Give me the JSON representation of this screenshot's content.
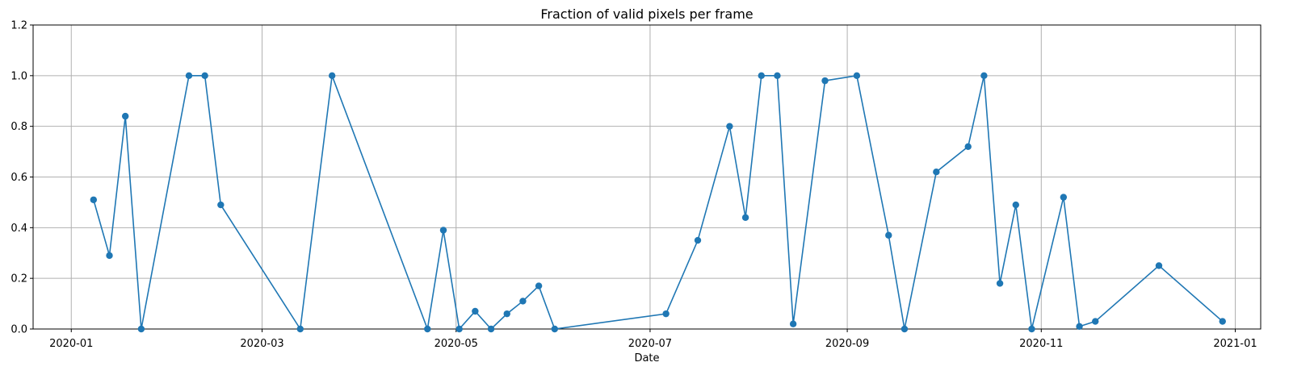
{
  "chart_data": {
    "type": "line",
    "title": "Fraction of valid pixels per frame",
    "xlabel": "Date",
    "ylabel": "",
    "x_scale": "date",
    "xlim": [
      "2019-12-20",
      "2021-01-09"
    ],
    "ylim": [
      0,
      1.2
    ],
    "grid": true,
    "marker": "circle",
    "line_color": "#1f77b4",
    "x_ticks": [
      "2020-01-01",
      "2020-03-01",
      "2020-05-01",
      "2020-07-01",
      "2020-09-01",
      "2020-11-01",
      "2021-01-01"
    ],
    "x_tick_labels": [
      "2020-01",
      "2020-03",
      "2020-05",
      "2020-07",
      "2020-09",
      "2020-11",
      "2021-01"
    ],
    "y_ticks": [
      0,
      0.2,
      0.4,
      0.6,
      0.8,
      1.0,
      1.2
    ],
    "y_tick_labels": [
      "0.0",
      "0.2",
      "0.4",
      "0.6",
      "0.8",
      "1.0",
      "1.2"
    ],
    "series": [
      {
        "points": [
          {
            "x": "2020-01-08",
            "y": 0.51
          },
          {
            "x": "2020-01-13",
            "y": 0.29
          },
          {
            "x": "2020-01-18",
            "y": 0.84
          },
          {
            "x": "2020-01-23",
            "y": 0.0
          },
          {
            "x": "2020-02-07",
            "y": 1.0
          },
          {
            "x": "2020-02-12",
            "y": 1.0
          },
          {
            "x": "2020-02-17",
            "y": 0.49
          },
          {
            "x": "2020-03-13",
            "y": 0.0
          },
          {
            "x": "2020-03-23",
            "y": 1.0
          },
          {
            "x": "2020-04-22",
            "y": 0.0
          },
          {
            "x": "2020-04-27",
            "y": 0.39
          },
          {
            "x": "2020-05-02",
            "y": 0.0
          },
          {
            "x": "2020-05-07",
            "y": 0.07
          },
          {
            "x": "2020-05-12",
            "y": 0.0
          },
          {
            "x": "2020-05-17",
            "y": 0.06
          },
          {
            "x": "2020-05-22",
            "y": 0.11
          },
          {
            "x": "2020-05-27",
            "y": 0.17
          },
          {
            "x": "2020-06-01",
            "y": 0.0
          },
          {
            "x": "2020-07-06",
            "y": 0.06
          },
          {
            "x": "2020-07-16",
            "y": 0.35
          },
          {
            "x": "2020-07-26",
            "y": 0.8
          },
          {
            "x": "2020-07-31",
            "y": 0.44
          },
          {
            "x": "2020-08-05",
            "y": 1.0
          },
          {
            "x": "2020-08-10",
            "y": 1.0
          },
          {
            "x": "2020-08-15",
            "y": 0.02
          },
          {
            "x": "2020-08-25",
            "y": 0.98
          },
          {
            "x": "2020-09-04",
            "y": 1.0
          },
          {
            "x": "2020-09-14",
            "y": 0.37
          },
          {
            "x": "2020-09-19",
            "y": 0.0
          },
          {
            "x": "2020-09-29",
            "y": 0.62
          },
          {
            "x": "2020-10-09",
            "y": 0.72
          },
          {
            "x": "2020-10-14",
            "y": 1.0
          },
          {
            "x": "2020-10-19",
            "y": 0.18
          },
          {
            "x": "2020-10-24",
            "y": 0.49
          },
          {
            "x": "2020-10-29",
            "y": 0.0
          },
          {
            "x": "2020-11-08",
            "y": 0.52
          },
          {
            "x": "2020-11-13",
            "y": 0.01
          },
          {
            "x": "2020-11-18",
            "y": 0.03
          },
          {
            "x": "2020-12-08",
            "y": 0.25
          },
          {
            "x": "2020-12-28",
            "y": 0.03
          }
        ]
      }
    ]
  }
}
